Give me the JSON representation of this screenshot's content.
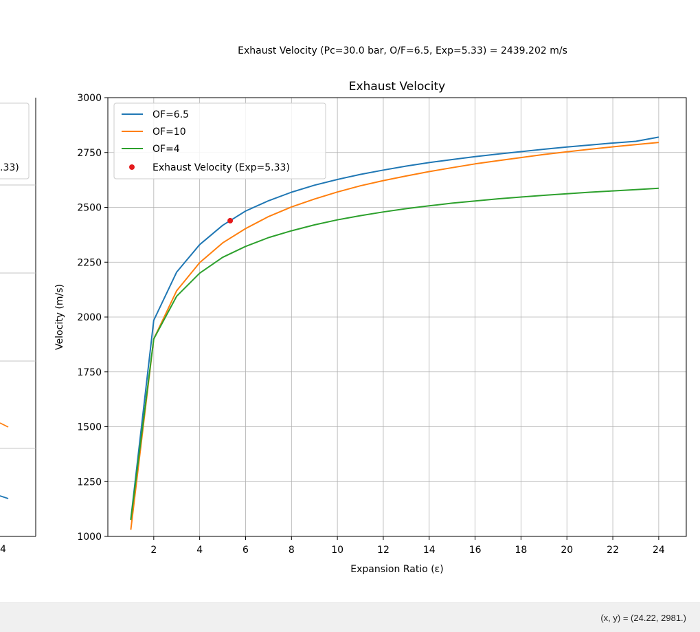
{
  "suptitle": "Exhaust Velocity (Pc=30.0 bar, O/F=6.5, Exp=5.33) = 2439.202 m/s",
  "status_bar": {
    "coordinates": "(x, y) = (24.22, 2981.)"
  },
  "left_panel_fragments": {
    "legend_partial": ".33)",
    "tick_partial": "4"
  },
  "chart_data": {
    "type": "line",
    "title": "Exhaust Velocity",
    "xlabel": "Expansion Ratio (ε)",
    "ylabel": "Velocity (m/s)",
    "xlim": [
      0,
      25.2
    ],
    "ylim": [
      1000,
      3000
    ],
    "xticks": [
      2,
      4,
      6,
      8,
      10,
      12,
      14,
      16,
      18,
      20,
      22,
      24
    ],
    "yticks": [
      1000,
      1250,
      1500,
      1750,
      2000,
      2250,
      2500,
      2750,
      3000
    ],
    "grid": true,
    "legend_position": "top-left",
    "x": [
      1,
      2,
      3,
      4,
      5,
      6,
      7,
      8,
      9,
      10,
      11,
      12,
      13,
      14,
      15,
      16,
      17,
      18,
      19,
      20,
      21,
      22,
      23,
      24
    ],
    "series": [
      {
        "name": "OF=6.5",
        "color": "#1f77b4",
        "values": [
          1078,
          1985,
          2205,
          2330,
          2418,
          2483,
          2530,
          2569,
          2601,
          2627,
          2650,
          2670,
          2688,
          2704,
          2718,
          2731,
          2743,
          2754,
          2765,
          2775,
          2784,
          2793,
          2801,
          2820
        ]
      },
      {
        "name": "OF=10",
        "color": "#ff7f0e",
        "values": [
          1030,
          1900,
          2120,
          2248,
          2338,
          2403,
          2458,
          2502,
          2538,
          2570,
          2598,
          2622,
          2643,
          2663,
          2681,
          2698,
          2713,
          2727,
          2741,
          2753,
          2765,
          2776,
          2786,
          2796
        ]
      },
      {
        "name": "OF=4",
        "color": "#2ca02c",
        "values": [
          1075,
          1900,
          2095,
          2200,
          2272,
          2322,
          2362,
          2393,
          2420,
          2443,
          2462,
          2479,
          2494,
          2507,
          2519,
          2529,
          2539,
          2547,
          2555,
          2562,
          2569,
          2575,
          2581,
          2587
        ]
      }
    ],
    "point": {
      "name": "Exhaust Velocity (Exp=5.33)",
      "x": 5.33,
      "y": 2439.202,
      "color": "#e41a1c"
    }
  }
}
